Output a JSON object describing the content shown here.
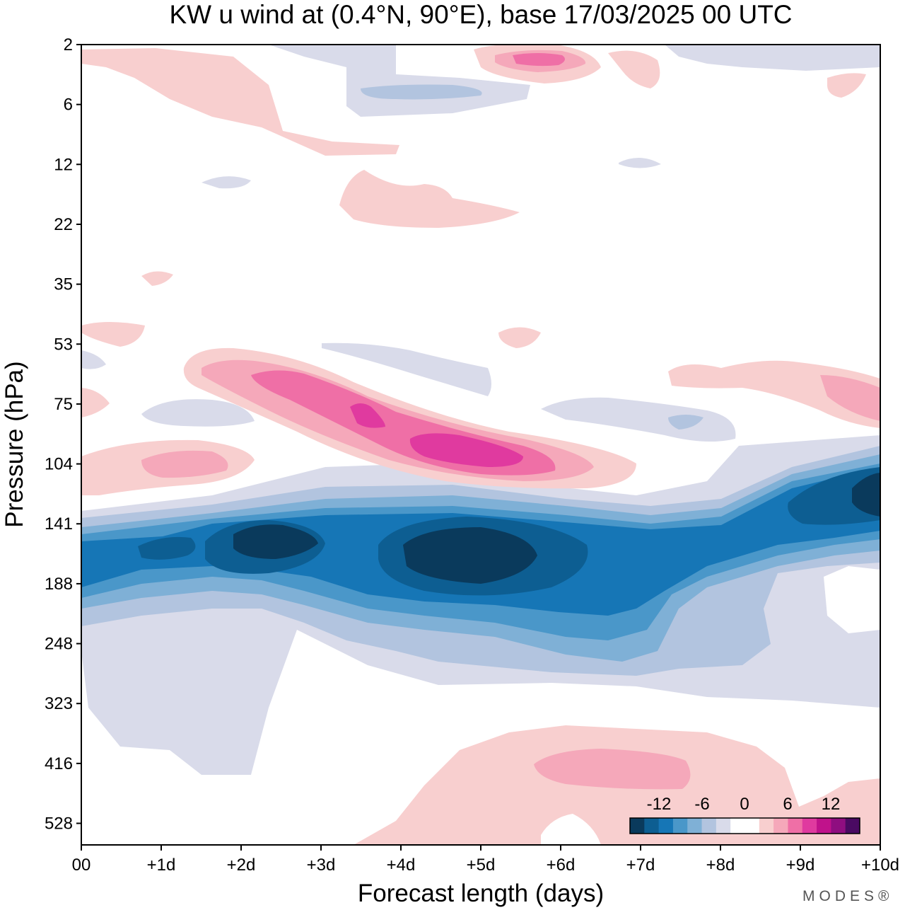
{
  "chart_data": {
    "type": "heatmap",
    "title": "KW u wind at (0.4°N, 90°E),  base 17/03/2025  00 UTC",
    "xlabel": "Forecast length (days)",
    "ylabel": "Pressure (hPa)",
    "x_ticks": [
      "00",
      "+1d",
      "+2d",
      "+3d",
      "+4d",
      "+5d",
      "+6d",
      "+7d",
      "+8d",
      "+9d",
      "+10d"
    ],
    "y_ticks": [
      "2",
      "6",
      "12",
      "22",
      "35",
      "53",
      "75",
      "104",
      "141",
      "188",
      "248",
      "323",
      "416",
      "528"
    ],
    "xlim_days": [
      0,
      10
    ],
    "colorbar": {
      "tick_labels": [
        "-12",
        "-6",
        "0",
        "6",
        "12"
      ],
      "colors": [
        "#0a3a5c",
        "#0d5e92",
        "#1676b6",
        "#4a97c9",
        "#7fb0d6",
        "#b2c4df",
        "#d9dbea",
        "#ffffff",
        "#ffffff",
        "#f8cfcf",
        "#f5a8ba",
        "#ef6fa6",
        "#e03a9f",
        "#c0128b",
        "#8f0e80",
        "#4a0a62"
      ],
      "position": "bottom-right inside plot"
    },
    "features": [
      {
        "level": -14,
        "description": "strongest easterly core",
        "days": [
          4.1,
          5.7
        ],
        "hPa": [
          145,
          172
        ]
      },
      {
        "level": -12,
        "description": "easterly core",
        "days": [
          1.6,
          3.0
        ],
        "hPa": [
          140,
          160
        ]
      },
      {
        "level": -12,
        "description": "easterly core",
        "days": [
          9.0,
          10.0
        ],
        "hPa": [
          112,
          140
        ]
      },
      {
        "level": -8,
        "description": "easterly jet band",
        "days": [
          0.0,
          10.0
        ],
        "hPa": [
          125,
          215
        ]
      },
      {
        "level": -2,
        "description": "weak easterly envelope",
        "days": [
          0.0,
          10.0
        ],
        "hPa": [
          110,
          400
        ]
      },
      {
        "level": 10,
        "description": "westerly maximum sloping downward",
        "days": [
          2.3,
          5.7
        ],
        "hPa": [
          62,
          106
        ]
      },
      {
        "level": 4,
        "description": "weak westerlies",
        "days": [
          0.0,
          1.2
        ],
        "hPa": [
          95,
          118
        ]
      },
      {
        "level": 4,
        "description": "lower-troposphere westerlies",
        "days": [
          4.1,
          10.0
        ],
        "hPa": [
          390,
          560
        ]
      },
      {
        "level": 6,
        "description": "upper stratosphere westerlies",
        "days": [
          5.0,
          6.5
        ],
        "hPa": [
          2,
          4
        ]
      }
    ]
  },
  "branding": {
    "logo_text": "MODES®"
  }
}
